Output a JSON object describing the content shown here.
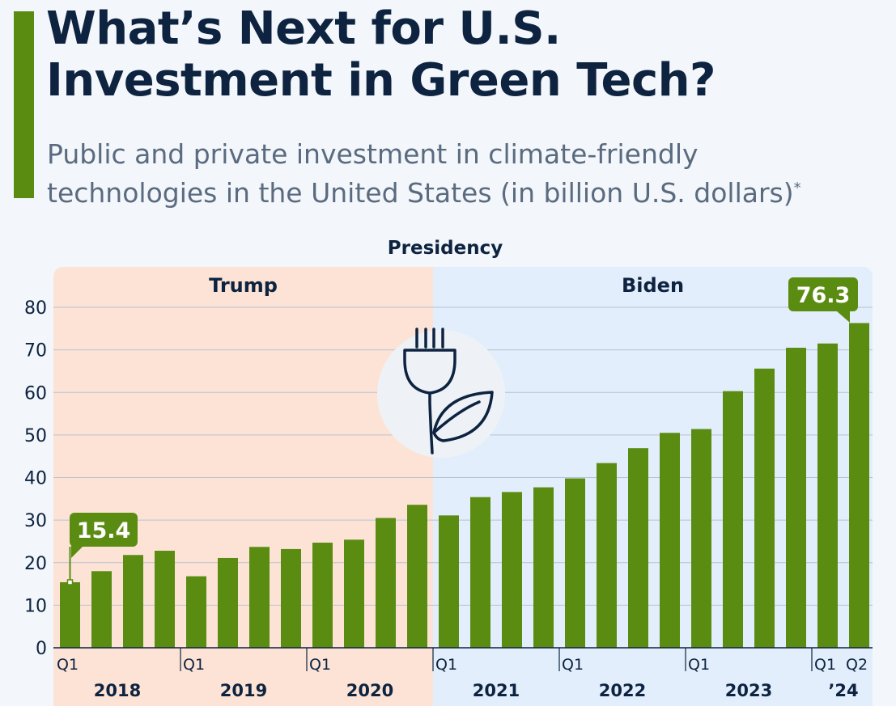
{
  "header": {
    "title_line1": "What’s Next for U.S.",
    "title_line2": "Investment in Green Tech?",
    "subtitle_line1": "Public and private investment in climate-friendly",
    "subtitle_line2": "technologies in the United States (in billion U.S. dollars)",
    "subtitle_footnote_mark": "*"
  },
  "colors": {
    "bar": "#5b8c12",
    "trump_bg": "#fde3d6",
    "biden_bg": "#e2eefb",
    "title": "#0d2340",
    "subtitle": "#5a6b80",
    "icon_stroke": "#0d2340"
  },
  "icon": "plug-with-leaf-icon",
  "chart_data": {
    "type": "bar",
    "title": "Presidency",
    "ylim": [
      0,
      80
    ],
    "yticks": [
      "0",
      "10",
      "20",
      "30",
      "40",
      "50",
      "60",
      "70",
      "80"
    ],
    "grid": true,
    "periods": [
      {
        "label": "Trump",
        "start": 0,
        "end": 12
      },
      {
        "label": "Biden",
        "start": 12,
        "end": 26
      }
    ],
    "categories": [
      "2018 Q1",
      "2018 Q2",
      "2018 Q3",
      "2018 Q4",
      "2019 Q1",
      "2019 Q2",
      "2019 Q3",
      "2019 Q4",
      "2020 Q1",
      "2020 Q2",
      "2020 Q3",
      "2020 Q4",
      "2021 Q1",
      "2021 Q2",
      "2021 Q3",
      "2021 Q4",
      "2022 Q1",
      "2022 Q2",
      "2022 Q3",
      "2022 Q4",
      "2023 Q1",
      "2023 Q2",
      "2023 Q3",
      "2023 Q4",
      "2024 Q1",
      "2024 Q2"
    ],
    "values": [
      15.4,
      18,
      21.8,
      22.8,
      16.8,
      21.1,
      23.7,
      23.2,
      24.7,
      25.4,
      30.5,
      33.6,
      31.1,
      35.4,
      36.6,
      37.7,
      39.8,
      43.4,
      46.9,
      50.5,
      51.4,
      60.3,
      65.6,
      70.5,
      71.5,
      76.3
    ],
    "year_labels": [
      {
        "label": "2018",
        "start": 0,
        "end": 4
      },
      {
        "label": "2019",
        "start": 4,
        "end": 8
      },
      {
        "label": "2020",
        "start": 8,
        "end": 12
      },
      {
        "label": "2021",
        "start": 12,
        "end": 16
      },
      {
        "label": "2022",
        "start": 16,
        "end": 20
      },
      {
        "label": "2023",
        "start": 20,
        "end": 24
      },
      {
        "label": "’24",
        "start": 24,
        "end": 26
      }
    ],
    "quarter_labels": [
      {
        "index": 0,
        "label": "Q1"
      },
      {
        "index": 4,
        "label": "Q1"
      },
      {
        "index": 8,
        "label": "Q1"
      },
      {
        "index": 12,
        "label": "Q1"
      },
      {
        "index": 16,
        "label": "Q1"
      },
      {
        "index": 20,
        "label": "Q1"
      },
      {
        "index": 24,
        "label": "Q1"
      },
      {
        "index": 25,
        "label": "Q2"
      }
    ],
    "annotations": [
      {
        "index": 0,
        "label": "15.4"
      },
      {
        "index": 25,
        "label": "76.3"
      }
    ]
  }
}
